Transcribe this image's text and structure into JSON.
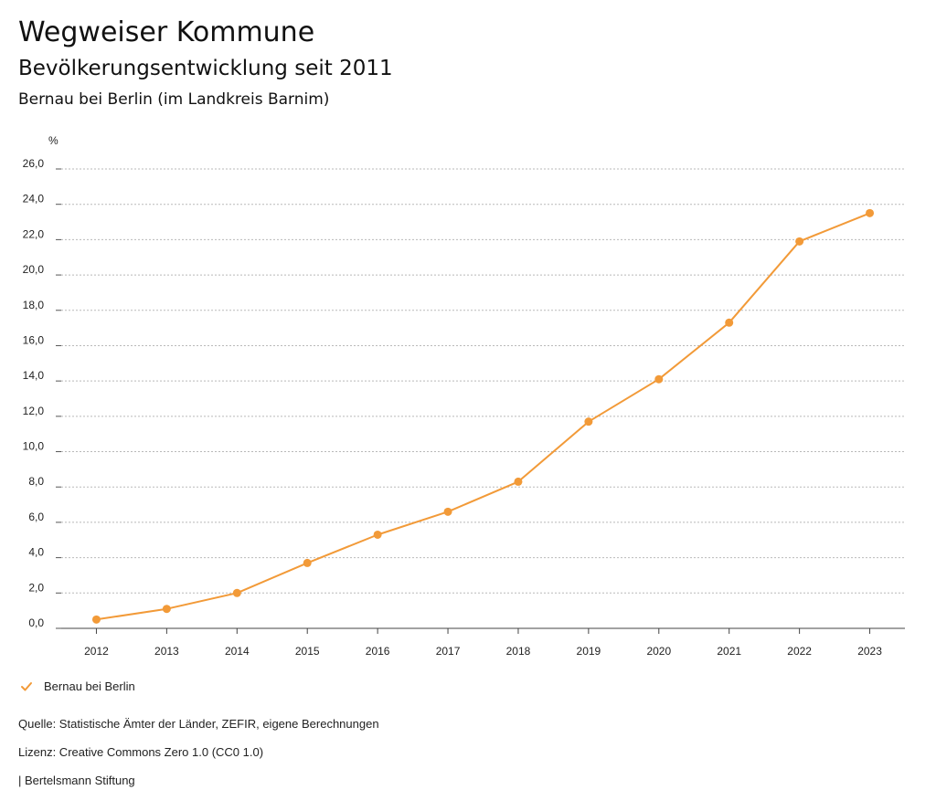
{
  "header": {
    "title": "Wegweiser Kommune",
    "subtitle": "Bevölkerungsentwicklung seit 2011",
    "region": "Bernau bei Berlin (im Landkreis Barnim)"
  },
  "chart_data": {
    "type": "line",
    "ylabel": "%",
    "x": [
      "2012",
      "2013",
      "2014",
      "2015",
      "2016",
      "2017",
      "2018",
      "2019",
      "2020",
      "2021",
      "2022",
      "2023"
    ],
    "series": [
      {
        "name": "Bernau bei Berlin",
        "color": "#F29A38",
        "values": [
          0.5,
          1.1,
          2.0,
          3.7,
          5.3,
          6.6,
          8.3,
          11.7,
          14.1,
          17.3,
          21.9,
          23.5
        ]
      }
    ],
    "ylim": [
      0,
      26
    ],
    "yticks": [
      "0,0",
      "2,0",
      "4,0",
      "6,0",
      "8,0",
      "10,0",
      "12,0",
      "14,0",
      "16,0",
      "18,0",
      "20,0",
      "22,0",
      "24,0",
      "26,0"
    ],
    "grid": true,
    "legend_position": "bottom-left"
  },
  "legend": {
    "label": "Bernau bei Berlin",
    "icon": "check-icon"
  },
  "footer": {
    "source": "Quelle: Statistische Ämter der Länder, ZEFIR, eigene Berechnungen",
    "license": "Lizenz: Creative Commons Zero 1.0 (CC0 1.0)",
    "publisher": "| Bertelsmann Stiftung"
  }
}
